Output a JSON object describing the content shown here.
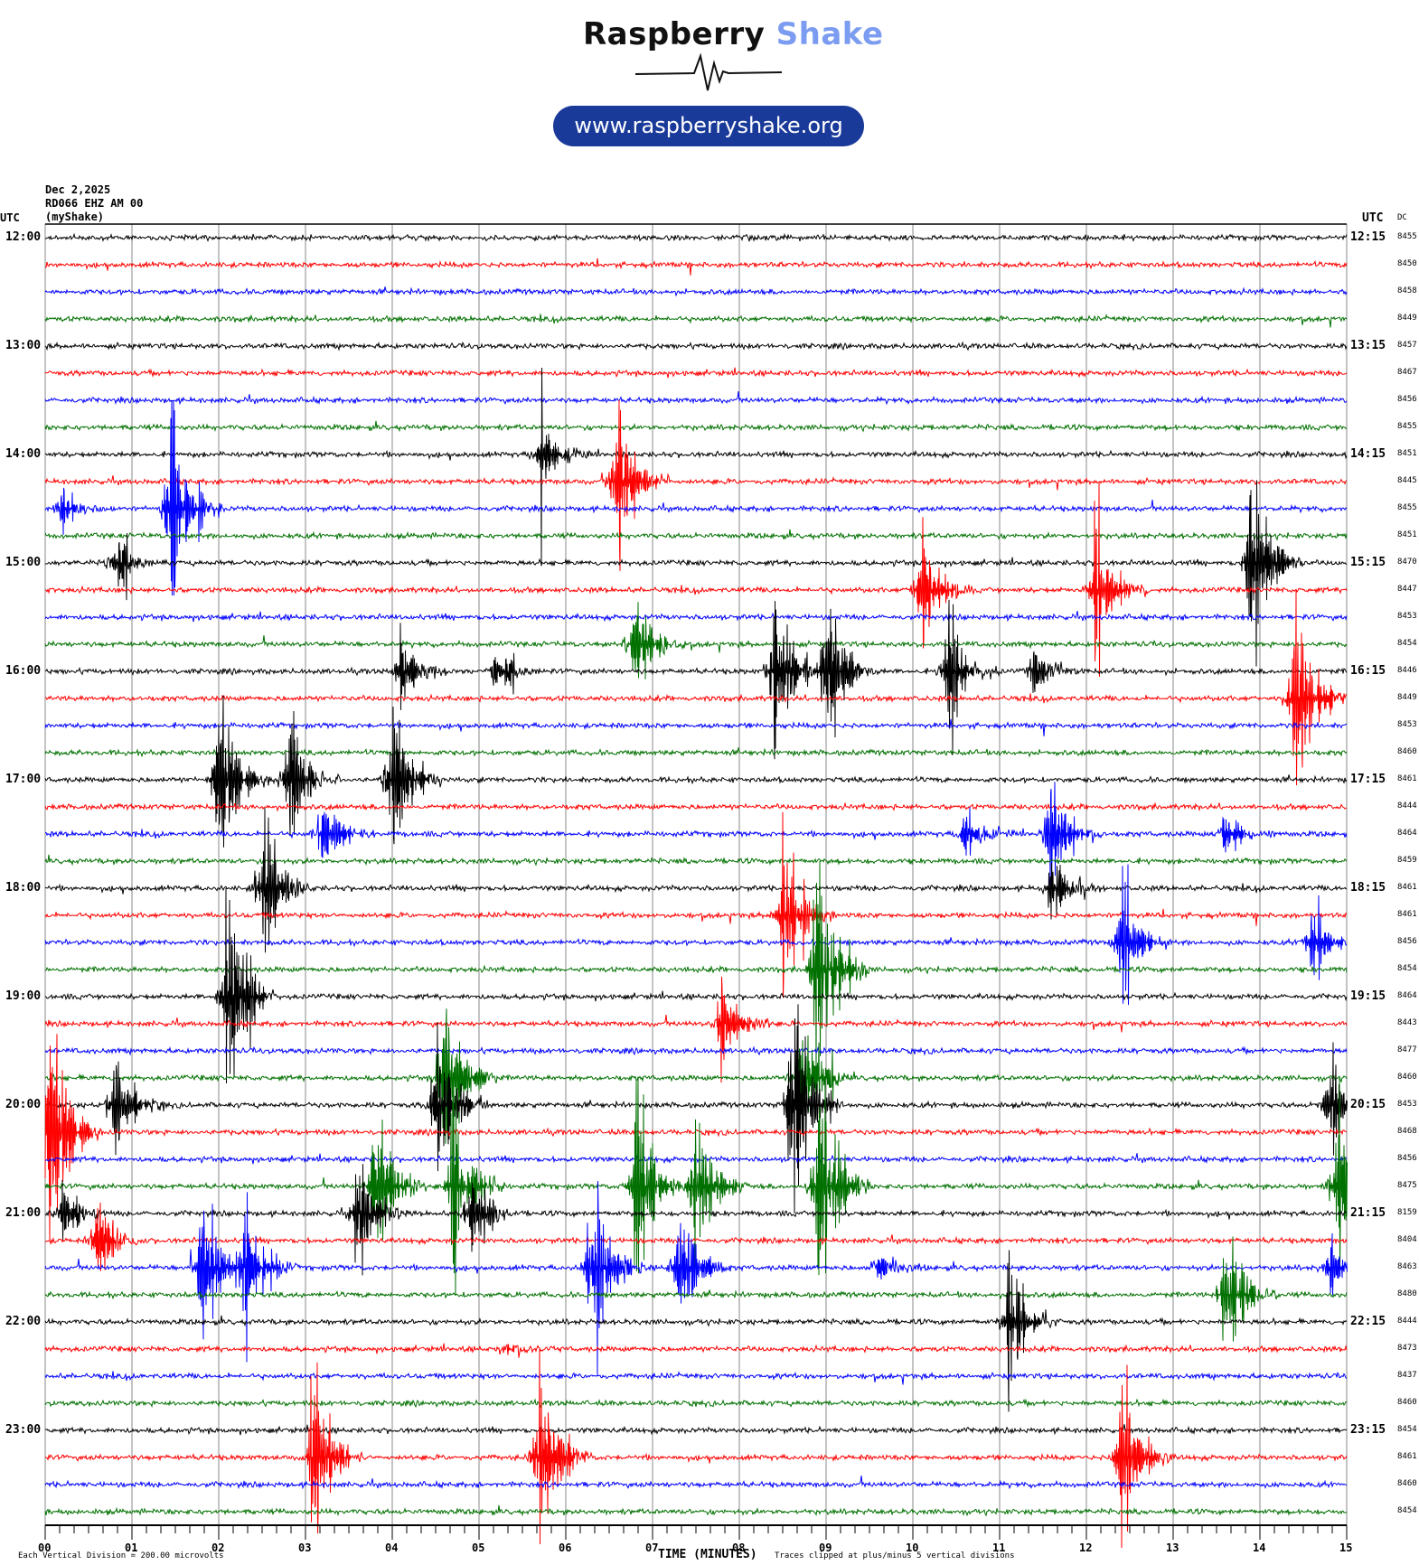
{
  "logo": {
    "brand_black": "Raspberry",
    "brand_blue": "Shake",
    "url": "www.raspberryshake.org"
  },
  "header": {
    "date": "Dec 2,2025",
    "station": "RD066 EHZ AM 00",
    "network": "(myShake)"
  },
  "left_axis": {
    "title": "UTC"
  },
  "right_axis": {
    "title": "UTC",
    "dc_title": "DC"
  },
  "footer": {
    "scale": "Each Vertical Division =  200.00 microvolts",
    "xlabel": "TIME (MINUTES)",
    "clip_note": "Traces clipped at plus/minus 5 vertical divisions"
  },
  "colors": {
    "cycle": [
      "#000000",
      "#ff0000",
      "#0000ff",
      "#007000"
    ],
    "grid": "#888888",
    "logo_blue": "#7b9cf0",
    "pill": "#1a3a9a"
  },
  "chart_data": {
    "type": "line",
    "title": "Helicorder RD066 EHZ AM 00",
    "xlabel": "TIME (MINUTES)",
    "x_ticks": [
      "00",
      "01",
      "02",
      "03",
      "04",
      "05",
      "06",
      "07",
      "08",
      "09",
      "10",
      "11",
      "12",
      "13",
      "14",
      "15"
    ],
    "xlim": [
      0,
      15
    ],
    "left_labels": [
      "12:00",
      "13:00",
      "14:00",
      "15:00",
      "16:00",
      "17:00",
      "18:00",
      "19:00",
      "20:00",
      "21:00",
      "22:00",
      "23:00"
    ],
    "right_labels": [
      "12:15",
      "13:15",
      "14:15",
      "15:15",
      "16:15",
      "17:15",
      "18:15",
      "19:15",
      "20:15",
      "21:15",
      "22:15",
      "23:15"
    ],
    "dc_values": [
      "8455",
      "8450",
      "8458",
      "8449",
      "8457",
      "8467",
      "8456",
      "8455",
      "8451",
      "8445",
      "8455",
      "8451",
      "8470",
      "8447",
      "8453",
      "8454",
      "8446",
      "8449",
      "8453",
      "8460",
      "8461",
      "8444",
      "8464",
      "8459",
      "8461",
      "8461",
      "8456",
      "8454",
      "8464",
      "8443",
      "8477",
      "8460",
      "8453",
      "8468",
      "8456",
      "8475",
      "8159",
      "8404",
      "8463",
      "8480",
      "8444",
      "8473",
      "8437",
      "8460",
      "8454",
      "8461",
      "8460",
      "8454"
    ],
    "clip_divisions": 5,
    "events": [
      {
        "trace": 8,
        "minute": 5.7,
        "amp": 1.6
      },
      {
        "trace": 9,
        "minute": 6.6,
        "amp": 3.5
      },
      {
        "trace": 10,
        "minute": 0.2,
        "amp": 0.8
      },
      {
        "trace": 10,
        "minute": 1.45,
        "amp": 4.5
      },
      {
        "trace": 12,
        "minute": 0.8,
        "amp": 1.0
      },
      {
        "trace": 12,
        "minute": 13.9,
        "amp": 5
      },
      {
        "trace": 13,
        "minute": 10.1,
        "amp": 2.5
      },
      {
        "trace": 13,
        "minute": 12.1,
        "amp": 2.8
      },
      {
        "trace": 15,
        "minute": 6.8,
        "amp": 2.2
      },
      {
        "trace": 16,
        "minute": 4.1,
        "amp": 1.3
      },
      {
        "trace": 16,
        "minute": 5.2,
        "amp": 0.8
      },
      {
        "trace": 16,
        "minute": 8.4,
        "amp": 3.2
      },
      {
        "trace": 16,
        "minute": 9.0,
        "amp": 3.2
      },
      {
        "trace": 16,
        "minute": 10.4,
        "amp": 2.4
      },
      {
        "trace": 16,
        "minute": 11.4,
        "amp": 1.0
      },
      {
        "trace": 17,
        "minute": 14.4,
        "amp": 4.2
      },
      {
        "trace": 20,
        "minute": 2.0,
        "amp": 3.5
      },
      {
        "trace": 20,
        "minute": 2.8,
        "amp": 2.8
      },
      {
        "trace": 20,
        "minute": 4.0,
        "amp": 3.6
      },
      {
        "trace": 22,
        "minute": 3.2,
        "amp": 1.8
      },
      {
        "trace": 22,
        "minute": 10.6,
        "amp": 1.0
      },
      {
        "trace": 22,
        "minute": 11.6,
        "amp": 2.8
      },
      {
        "trace": 22,
        "minute": 13.6,
        "amp": 0.9
      },
      {
        "trace": 24,
        "minute": 2.5,
        "amp": 2.5
      },
      {
        "trace": 24,
        "minute": 11.6,
        "amp": 1.3
      },
      {
        "trace": 25,
        "minute": 8.5,
        "amp": 3.6
      },
      {
        "trace": 26,
        "minute": 12.4,
        "amp": 2.8
      },
      {
        "trace": 26,
        "minute": 14.6,
        "amp": 1.6
      },
      {
        "trace": 27,
        "minute": 8.9,
        "amp": 5
      },
      {
        "trace": 28,
        "minute": 2.1,
        "amp": 5
      },
      {
        "trace": 29,
        "minute": 7.8,
        "amp": 2.0
      },
      {
        "trace": 31,
        "minute": 4.6,
        "amp": 4.5
      },
      {
        "trace": 31,
        "minute": 8.7,
        "amp": 2.5
      },
      {
        "trace": 32,
        "minute": 0.8,
        "amp": 2.4
      },
      {
        "trace": 32,
        "minute": 4.5,
        "amp": 3.2
      },
      {
        "trace": 32,
        "minute": 8.6,
        "amp": 5
      },
      {
        "trace": 32,
        "minute": 14.8,
        "amp": 2.4
      },
      {
        "trace": 33,
        "minute": 0.05,
        "amp": 5
      },
      {
        "trace": 35,
        "minute": 3.8,
        "amp": 3.5
      },
      {
        "trace": 35,
        "minute": 4.7,
        "amp": 3.0
      },
      {
        "trace": 35,
        "minute": 6.8,
        "amp": 3.5
      },
      {
        "trace": 35,
        "minute": 7.5,
        "amp": 3.5
      },
      {
        "trace": 35,
        "minute": 8.9,
        "amp": 4.5
      },
      {
        "trace": 35,
        "minute": 14.9,
        "amp": 5
      },
      {
        "trace": 36,
        "minute": 0.2,
        "amp": 1.4
      },
      {
        "trace": 36,
        "minute": 3.6,
        "amp": 2.2
      },
      {
        "trace": 36,
        "minute": 4.9,
        "amp": 1.6
      },
      {
        "trace": 37,
        "minute": 0.6,
        "amp": 1.4
      },
      {
        "trace": 38,
        "minute": 1.8,
        "amp": 3.6
      },
      {
        "trace": 38,
        "minute": 2.3,
        "amp": 3.0
      },
      {
        "trace": 38,
        "minute": 6.3,
        "amp": 4.2
      },
      {
        "trace": 38,
        "minute": 7.3,
        "amp": 3.0
      },
      {
        "trace": 38,
        "minute": 9.6,
        "amp": 0.7
      },
      {
        "trace": 38,
        "minute": 14.8,
        "amp": 1.0
      },
      {
        "trace": 39,
        "minute": 13.6,
        "amp": 2.6
      },
      {
        "trace": 40,
        "minute": 11.1,
        "amp": 2.6
      },
      {
        "trace": 41,
        "minute": 5.3,
        "amp": 0.4
      },
      {
        "trace": 45,
        "minute": 3.1,
        "amp": 4.0
      },
      {
        "trace": 45,
        "minute": 5.7,
        "amp": 3.8
      },
      {
        "trace": 45,
        "minute": 12.4,
        "amp": 3.8
      }
    ]
  }
}
